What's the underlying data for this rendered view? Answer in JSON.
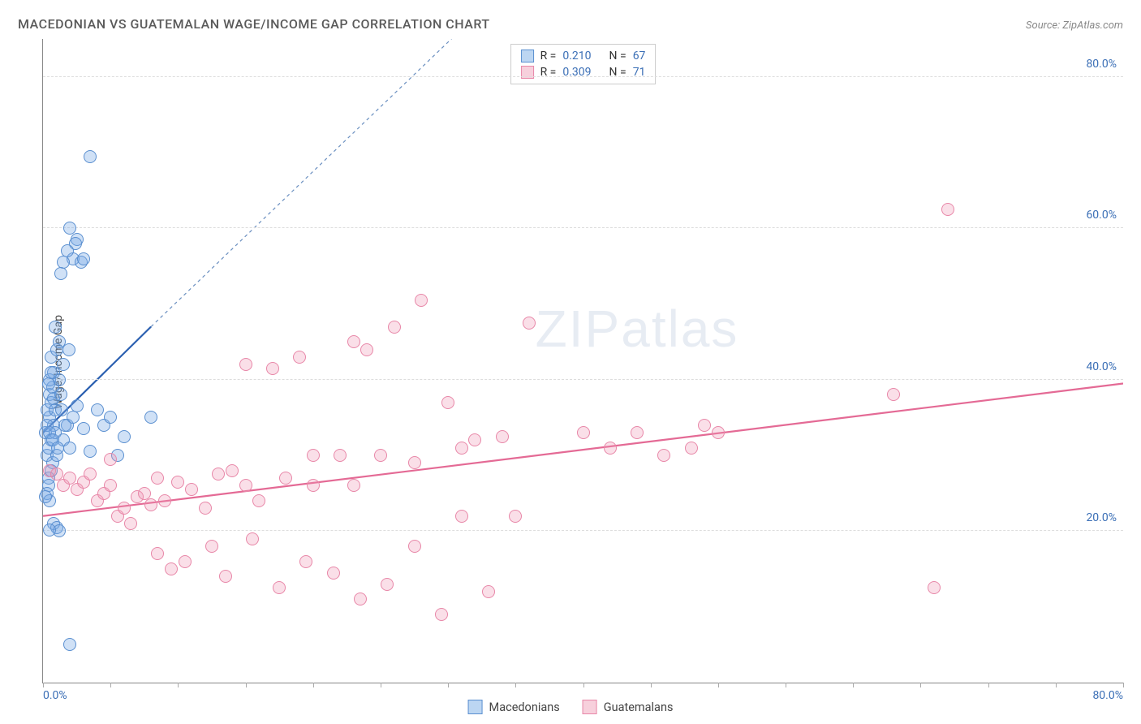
{
  "title": "MACEDONIAN VS GUATEMALAN WAGE/INCOME GAP CORRELATION CHART",
  "source_label": "Source: ZipAtlas.com",
  "ylabel": "Wage/Income Gap",
  "watermark": {
    "part1": "ZIP",
    "part2": "atlas"
  },
  "chart": {
    "type": "scatter",
    "background_color": "#ffffff",
    "grid_color": "#dddddd",
    "axis_color": "#888888",
    "tick_color": "#aaaaaa",
    "xlim": [
      0,
      80
    ],
    "ylim": [
      0,
      85
    ],
    "x_ticks_minor": [
      0,
      5,
      10,
      15,
      20,
      25,
      30,
      35,
      40,
      45,
      50,
      55,
      60,
      65,
      70,
      75,
      80
    ],
    "y_gridlines": [
      20,
      40,
      60,
      80
    ],
    "y_axis_labels": [
      {
        "value": 20,
        "text": "20.0%"
      },
      {
        "value": 40,
        "text": "40.0%"
      },
      {
        "value": 60,
        "text": "60.0%"
      },
      {
        "value": 80,
        "text": "80.0%"
      }
    ],
    "x_axis_label_left": "0.0%",
    "x_axis_label_right": "80.0%",
    "y_axis_label_color": "#3b6fb6",
    "marker_radius": 8,
    "marker_stroke_width": 1.5,
    "series": [
      {
        "id": "macedonians",
        "label": "Macedonians",
        "fill_color": "rgba(120,170,230,0.35)",
        "stroke_color": "#5a8fd0",
        "swatch_fill": "#bcd6f2",
        "swatch_border": "#5a8fd0",
        "trend_color": "#2a5fb0",
        "trend_extrap_color": "#6a8fc0",
        "trend_width": 2.2,
        "R": "0.210",
        "N": "67",
        "trend": {
          "x1": 0,
          "y1": 33,
          "x2": 8,
          "y2": 47,
          "extrapolate_to_x": 32,
          "extrapolate_to_y": 88
        },
        "points": [
          [
            0.2,
            33
          ],
          [
            0.3,
            30
          ],
          [
            0.4,
            27
          ],
          [
            0.5,
            35
          ],
          [
            0.6,
            32
          ],
          [
            0.7,
            29
          ],
          [
            0.5,
            38
          ],
          [
            0.8,
            34
          ],
          [
            0.3,
            36
          ],
          [
            0.6,
            37
          ],
          [
            0.9,
            33
          ],
          [
            0.4,
            31
          ],
          [
            0.7,
            39
          ],
          [
            0.5,
            40
          ],
          [
            0.8,
            41
          ],
          [
            0.6,
            43
          ],
          [
            1.0,
            44
          ],
          [
            1.2,
            45
          ],
          [
            0.9,
            47
          ],
          [
            0.6,
            28
          ],
          [
            0.4,
            26
          ],
          [
            0.3,
            25
          ],
          [
            0.5,
            24
          ],
          [
            0.2,
            24.5
          ],
          [
            1.0,
            30
          ],
          [
            1.5,
            32
          ],
          [
            1.8,
            34
          ],
          [
            2.0,
            31
          ],
          [
            2.2,
            35
          ],
          [
            2.5,
            36.5
          ],
          [
            3.0,
            33.5
          ],
          [
            3.5,
            30.5
          ],
          [
            4.0,
            36
          ],
          [
            4.5,
            34
          ],
          [
            5.0,
            35
          ],
          [
            5.5,
            30
          ],
          [
            6.0,
            32.5
          ],
          [
            8.0,
            35
          ],
          [
            1.2,
            40
          ],
          [
            1.5,
            42
          ],
          [
            0.8,
            21
          ],
          [
            1.0,
            20.5
          ],
          [
            1.2,
            20
          ],
          [
            0.5,
            20.2
          ],
          [
            2.0,
            5
          ],
          [
            2.5,
            58.5
          ],
          [
            2.0,
            60
          ],
          [
            2.4,
            58
          ],
          [
            2.2,
            56
          ],
          [
            1.8,
            57
          ],
          [
            1.5,
            55.5
          ],
          [
            1.3,
            54
          ],
          [
            2.8,
            55.5
          ],
          [
            3.0,
            56
          ],
          [
            3.5,
            69.5
          ],
          [
            0.4,
            39.5
          ],
          [
            0.6,
            41
          ],
          [
            0.8,
            37.5
          ],
          [
            0.9,
            36
          ],
          [
            0.3,
            34
          ],
          [
            0.5,
            33
          ],
          [
            0.7,
            32
          ],
          [
            1.1,
            31
          ],
          [
            1.3,
            38
          ],
          [
            1.4,
            36
          ],
          [
            1.6,
            34
          ],
          [
            1.9,
            44
          ]
        ]
      },
      {
        "id": "guatemalans",
        "label": "Guatemalans",
        "fill_color": "rgba(240,150,180,0.30)",
        "stroke_color": "#e887a8",
        "swatch_fill": "#f7d0dc",
        "swatch_border": "#e887a8",
        "trend_color": "#e46a95",
        "trend_width": 2.2,
        "R": "0.309",
        "N": "71",
        "trend": {
          "x1": 0,
          "y1": 22,
          "x2": 80,
          "y2": 39.5
        },
        "points": [
          [
            0.5,
            28
          ],
          [
            1.0,
            27.5
          ],
          [
            1.5,
            26
          ],
          [
            2.0,
            27
          ],
          [
            2.5,
            25.5
          ],
          [
            3.0,
            26.5
          ],
          [
            3.5,
            27.5
          ],
          [
            4.0,
            24
          ],
          [
            4.5,
            25
          ],
          [
            5.0,
            26
          ],
          [
            5.5,
            22
          ],
          [
            6.0,
            23
          ],
          [
            6.5,
            21
          ],
          [
            7.0,
            24.5
          ],
          [
            7.5,
            25
          ],
          [
            8.0,
            23.5
          ],
          [
            8.5,
            27
          ],
          [
            9.0,
            24
          ],
          [
            10.0,
            26.5
          ],
          [
            11.0,
            25.5
          ],
          [
            12.0,
            23
          ],
          [
            13.0,
            27.5
          ],
          [
            14.0,
            28
          ],
          [
            15.0,
            26
          ],
          [
            16.0,
            24
          ],
          [
            17.0,
            41.5
          ],
          [
            18.0,
            27
          ],
          [
            19.0,
            43
          ],
          [
            20.0,
            26
          ],
          [
            22.0,
            30
          ],
          [
            23.0,
            45
          ],
          [
            24.0,
            44
          ],
          [
            25.0,
            30
          ],
          [
            26.0,
            47
          ],
          [
            27.5,
            29
          ],
          [
            28.0,
            50.5
          ],
          [
            30.0,
            37
          ],
          [
            31.0,
            31
          ],
          [
            32.0,
            32
          ],
          [
            33.0,
            12
          ],
          [
            34.0,
            32.5
          ],
          [
            35.0,
            22
          ],
          [
            36.0,
            47.5
          ],
          [
            40.0,
            33
          ],
          [
            42.0,
            31
          ],
          [
            44.0,
            33
          ],
          [
            46.0,
            30
          ],
          [
            48.0,
            31
          ],
          [
            49.0,
            34
          ],
          [
            50.0,
            33
          ],
          [
            63.0,
            38
          ],
          [
            66.0,
            12.5
          ],
          [
            67.0,
            62.5
          ],
          [
            8.5,
            17
          ],
          [
            9.5,
            15
          ],
          [
            10.5,
            16
          ],
          [
            12.5,
            18
          ],
          [
            13.5,
            14
          ],
          [
            15.5,
            19
          ],
          [
            17.5,
            12.5
          ],
          [
            19.5,
            16
          ],
          [
            21.5,
            14.5
          ],
          [
            23.5,
            11
          ],
          [
            25.5,
            13
          ],
          [
            27.5,
            18
          ],
          [
            29.5,
            9
          ],
          [
            5.0,
            29.5
          ],
          [
            15.0,
            42
          ],
          [
            20.0,
            30
          ],
          [
            23.0,
            26
          ],
          [
            31.0,
            22
          ]
        ]
      }
    ]
  },
  "legend": {
    "items": [
      {
        "ref": "macedonians"
      },
      {
        "ref": "guatemalans"
      }
    ]
  },
  "stats_box": {
    "rows": [
      {
        "ref": "macedonians",
        "R_label": "R",
        "N_label": "N"
      },
      {
        "ref": "guatemalans",
        "R_label": "R",
        "N_label": "N"
      }
    ]
  }
}
